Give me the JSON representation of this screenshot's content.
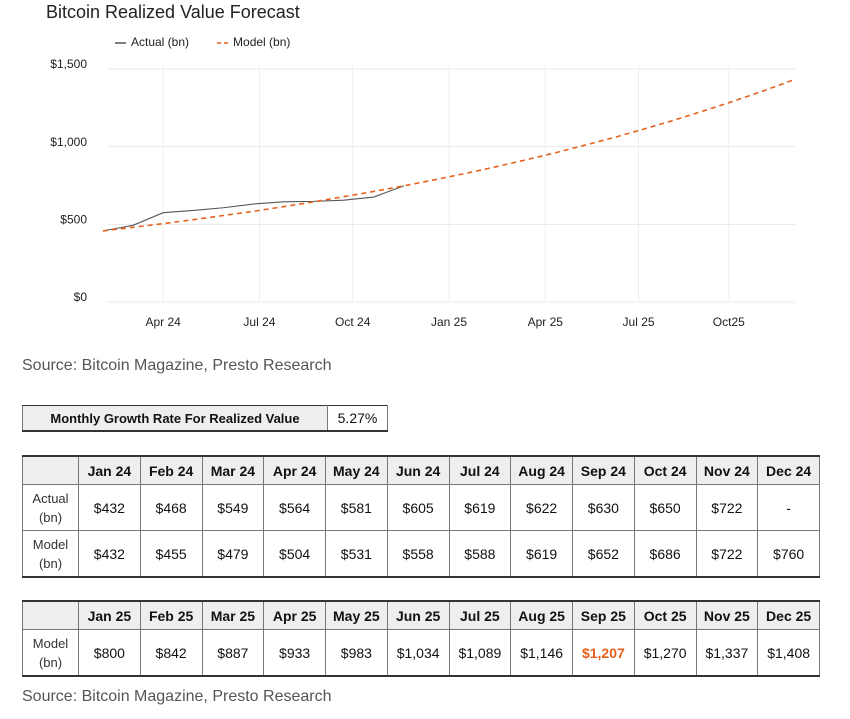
{
  "chart_data": {
    "type": "line",
    "title": "Bitcoin Realized Value Forecast",
    "x": [
      0,
      1,
      2,
      3,
      4,
      5,
      6,
      7,
      8,
      9,
      10,
      11,
      12,
      13,
      14,
      15,
      16,
      17,
      18,
      19,
      20,
      21,
      22,
      23
    ],
    "series": [
      {
        "name": "Actual (bn)",
        "color": "#555555",
        "dashed": false,
        "values": [
          432,
          468,
          549,
          564,
          581,
          605,
          619,
          622,
          630,
          650,
          722,
          null,
          null,
          null,
          null,
          null,
          null,
          null,
          null,
          null,
          null,
          null,
          null,
          null
        ]
      },
      {
        "name": "Model (bn)",
        "color": "#e8601c",
        "dashed": true,
        "values": [
          432,
          455,
          479,
          504,
          531,
          558,
          588,
          619,
          652,
          686,
          722,
          760,
          800,
          842,
          887,
          933,
          983,
          1034,
          1089,
          1146,
          1207,
          1270,
          1337,
          1408
        ]
      }
    ],
    "xlim": [
      0,
      23
    ],
    "xticks": [
      {
        "value": 2,
        "label": "Apr 24"
      },
      {
        "value": 5.2,
        "label": "Jul 24"
      },
      {
        "value": 8.3,
        "label": "Oct 24"
      },
      {
        "value": 11.5,
        "label": "Jan 25"
      },
      {
        "value": 14.7,
        "label": "Apr 25"
      },
      {
        "value": 17.8,
        "label": "Jul 25"
      },
      {
        "value": 20.8,
        "label": "Oct25"
      }
    ],
    "ylim": [
      0,
      1500
    ],
    "yticks": [
      {
        "value": 0,
        "label": "$0"
      },
      {
        "value": 500,
        "label": "$500"
      },
      {
        "value": 1000,
        "label": "$1,000"
      },
      {
        "value": 1500,
        "label": "$1,500"
      }
    ],
    "grid": true,
    "legend": "top"
  },
  "source_top": "Source: Bitcoin Magazine, Presto Research",
  "growth_table": {
    "label": "Monthly Growth Rate For Realized Value",
    "value": "5.27%"
  },
  "table_2024": {
    "header": [
      "Jan 24",
      "Feb 24",
      "Mar 24",
      "Apr 24",
      "May 24",
      "Jun 24",
      "Jul 24",
      "Aug 24",
      "Sep 24",
      "Oct 24",
      "Nov 24",
      "Dec 24"
    ],
    "rows": [
      {
        "label": "Actual (bn)",
        "cells": [
          "$432",
          "$468",
          "$549",
          "$564",
          "$581",
          "$605",
          "$619",
          "$622",
          "$630",
          "$650",
          "$722",
          "-"
        ]
      },
      {
        "label": "Model (bn)",
        "cells": [
          "$432",
          "$455",
          "$479",
          "$504",
          "$531",
          "$558",
          "$588",
          "$619",
          "$652",
          "$686",
          "$722",
          "$760"
        ]
      }
    ]
  },
  "table_2025": {
    "header": [
      "Jan 25",
      "Feb 25",
      "Mar 25",
      "Apr 25",
      "May 25",
      "Jun 25",
      "Jul 25",
      "Aug 25",
      "Sep 25",
      "Oct 25",
      "Nov 25",
      "Dec 25"
    ],
    "rows": [
      {
        "label": "Model (bn)",
        "cells": [
          "$800",
          "$842",
          "$887",
          "$933",
          "$983",
          "$1,034",
          "$1,089",
          "$1,146",
          "$1,207",
          "$1,270",
          "$1,337",
          "$1,408"
        ]
      }
    ],
    "highlight": {
      "row": 0,
      "col": 8,
      "color": "#e8601c"
    }
  },
  "source_bottom": "Source: Bitcoin Magazine, Presto Research"
}
